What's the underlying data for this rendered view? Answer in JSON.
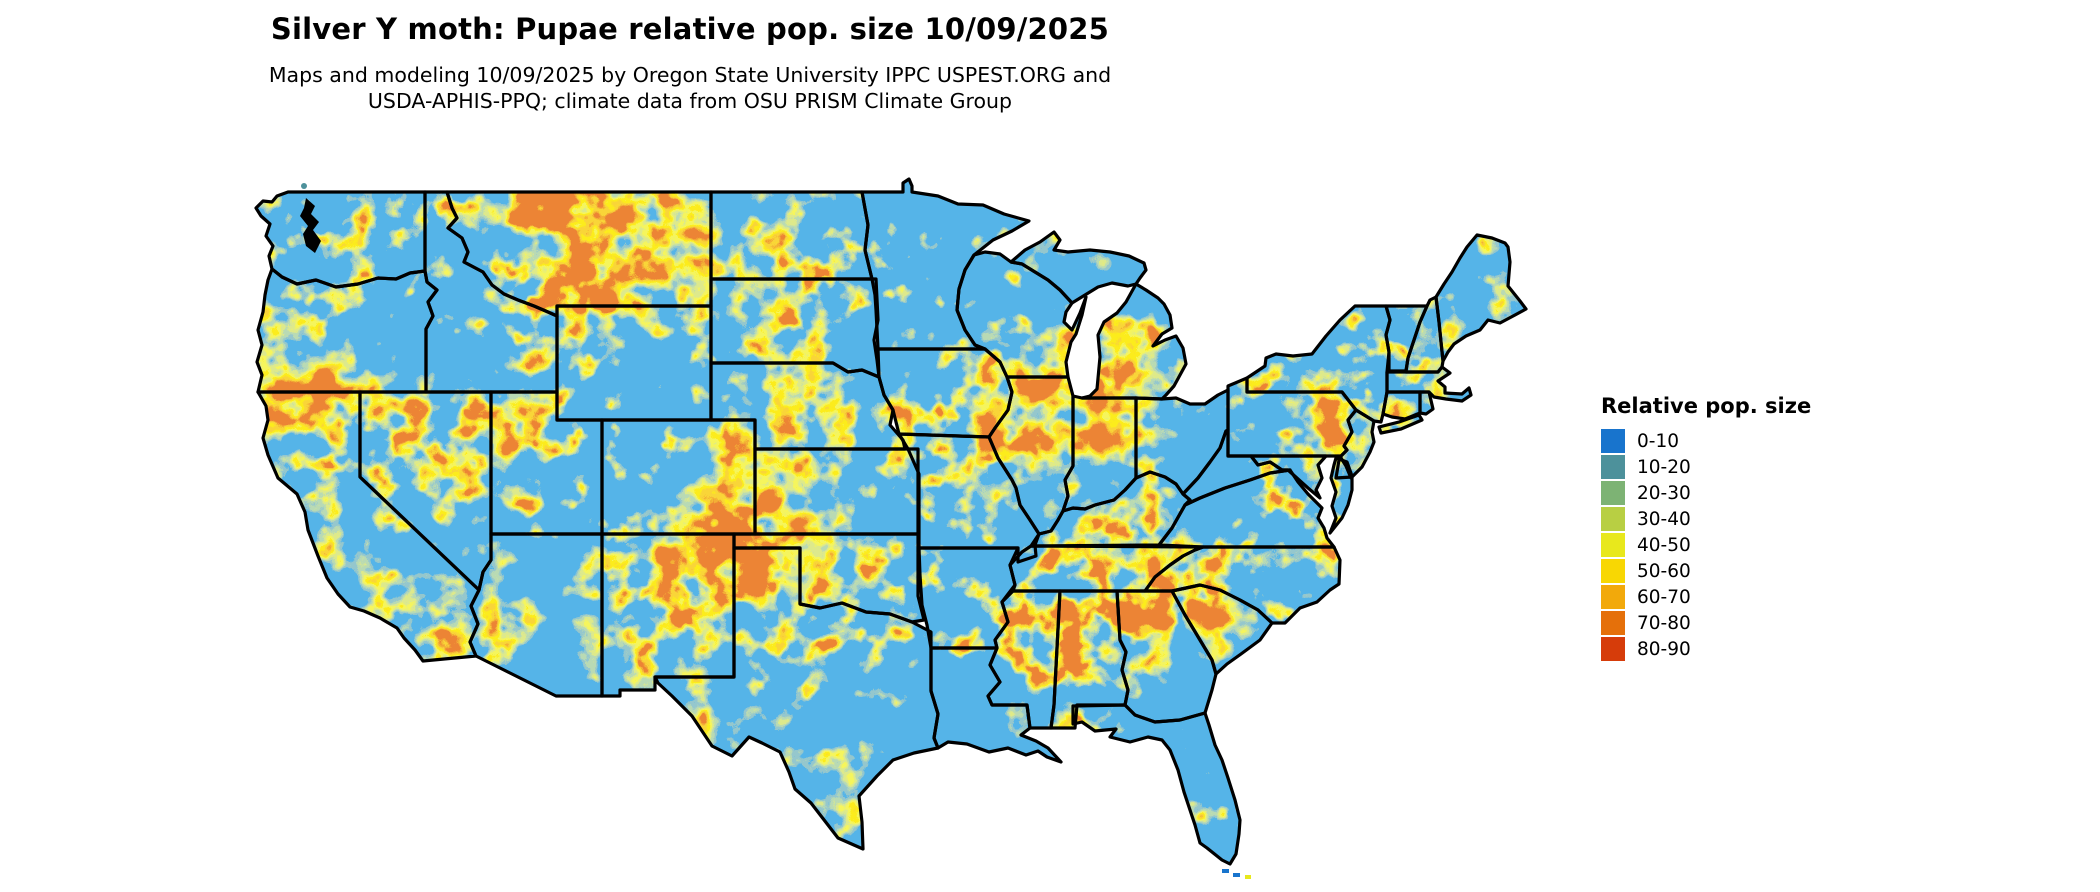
{
  "header": {
    "title": "Silver Y moth: Pupae relative pop. size 10/09/2025",
    "subtitle_line1": "Maps and modeling 10/09/2025 by Oregon State University IPPC USPEST.ORG and",
    "subtitle_line2": "USDA-APHIS-PPQ; climate data from OSU PRISM Climate Group"
  },
  "legend": {
    "title": "Relative pop. size",
    "items": [
      {
        "label": "0-10",
        "color": "#1874cd"
      },
      {
        "label": "10-20",
        "color": "#4d919b"
      },
      {
        "label": "20-30",
        "color": "#7db374"
      },
      {
        "label": "30-40",
        "color": "#b8cf43"
      },
      {
        "label": "40-50",
        "color": "#e8e81c"
      },
      {
        "label": "50-60",
        "color": "#f8d703"
      },
      {
        "label": "60-70",
        "color": "#f2a90b"
      },
      {
        "label": "70-80",
        "color": "#e5700a"
      },
      {
        "label": "80-90",
        "color": "#d63c0a"
      }
    ]
  },
  "map": {
    "region": "contiguous United States",
    "water_color": "#ffffff",
    "border_color": "#000000",
    "base_fill": "#1874cd"
  }
}
